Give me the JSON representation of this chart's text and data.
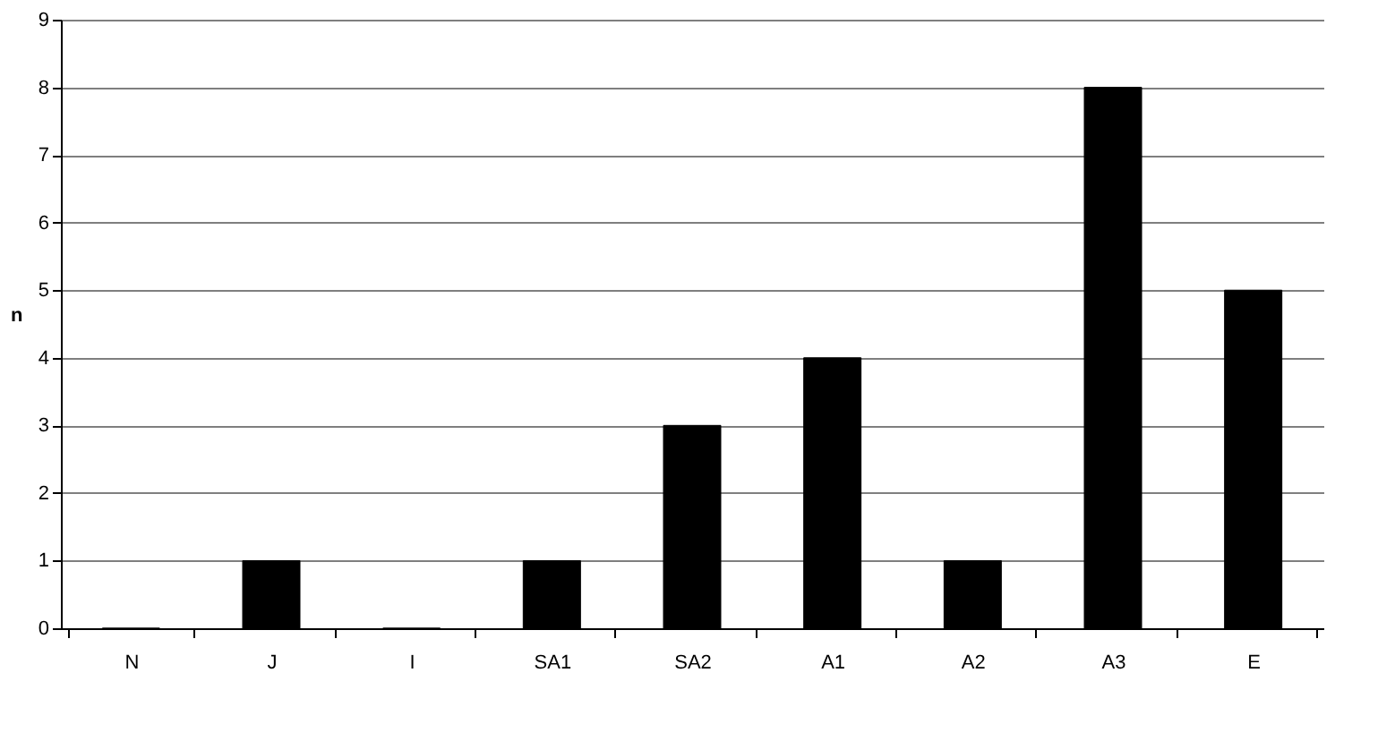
{
  "chart_data": {
    "type": "bar",
    "ylabel": "n",
    "categories": [
      "N",
      "J",
      "I",
      "SA1",
      "SA2",
      "A1",
      "A2",
      "A3",
      "E"
    ],
    "series": [
      {
        "color": "#000000",
        "values": [
          0,
          1,
          0,
          1,
          3,
          4,
          1,
          8,
          5
        ]
      }
    ],
    "ylim": [
      0,
      9
    ],
    "yticks": [
      0,
      1,
      2,
      3,
      4,
      5,
      6,
      7,
      8,
      9
    ],
    "grid": "y",
    "legend": false
  }
}
